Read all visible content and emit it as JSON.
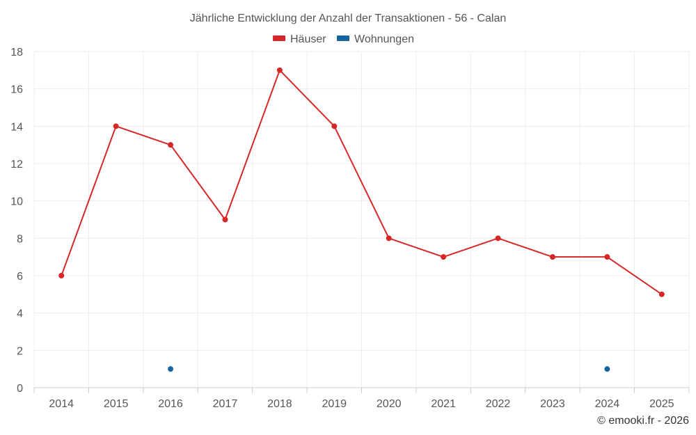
{
  "chart_data": {
    "type": "line",
    "title": "Jährliche Entwicklung der Anzahl der Transaktionen - 56 - Calan",
    "categories": [
      "2014",
      "2015",
      "2016",
      "2017",
      "2018",
      "2019",
      "2020",
      "2021",
      "2022",
      "2023",
      "2024",
      "2025"
    ],
    "ylim": [
      0,
      18
    ],
    "yticks": [
      0,
      2,
      4,
      6,
      8,
      10,
      12,
      14,
      16,
      18
    ],
    "grid": true,
    "legend_position": "top-center",
    "series": [
      {
        "name": "Häuser",
        "color": "#d62728",
        "values": [
          6,
          14,
          13,
          9,
          17,
          14,
          8,
          7,
          8,
          7,
          7,
          5
        ]
      },
      {
        "name": "Wohnungen",
        "color": "#1565a0",
        "values": [
          null,
          null,
          1,
          null,
          null,
          null,
          null,
          null,
          null,
          null,
          1,
          null
        ]
      }
    ]
  },
  "credit": "© emooki.fr - 2026"
}
